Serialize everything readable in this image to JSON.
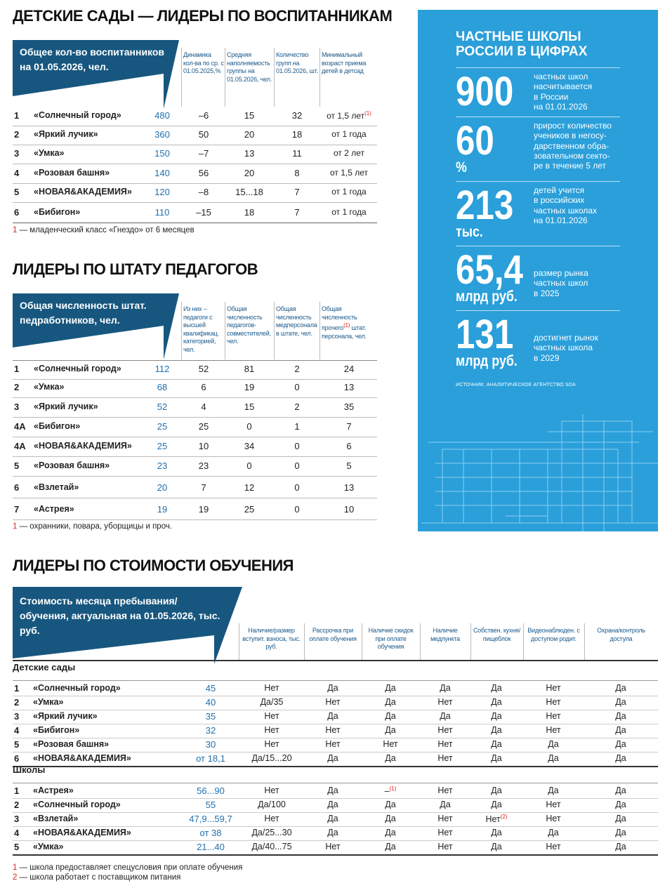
{
  "kindergartens": {
    "title": "ДЕТСКИЕ САДЫ — ЛИДЕРЫ ПО ВОСПИТАННИКАМ",
    "banner": "Общее кол-во воспитанников на 01.05.2026, чел.",
    "headers": [
      "Динамика кол-ва по ср. с 01.05.2025,%",
      "Средняя наполняемость группы на 01.05.2026, чел.",
      "Количество групп на 01.05.2026, шт.",
      "Минимальный возраст приема детей в детсад"
    ],
    "rows": [
      [
        "1",
        "«Солнечный город»",
        "480",
        "–6",
        "15",
        "32",
        [
          "от 1,5 лет",
          {
            "sup": "(1)"
          }
        ]
      ],
      [
        "2",
        "«Яркий лучик»",
        "360",
        "50",
        "20",
        "18",
        "от 1 года"
      ],
      [
        "3",
        "«Умка»",
        "150",
        "–7",
        "13",
        "11",
        "от 2 лет"
      ],
      [
        "4",
        "«Розовая башня»",
        "140",
        "56",
        "20",
        "8",
        "от 1,5 лет"
      ],
      [
        "5",
        "«НОВАЯ&АКАДЕМИЯ»",
        "120",
        "–8",
        "15...18",
        "7",
        "от 1 года"
      ],
      [
        "6",
        "«Бибигон»",
        "110",
        "–15",
        "18",
        "7",
        "от 1 года"
      ]
    ],
    "footnotes": [
      {
        "mark": "1",
        "text": "— младенческий класс «Гнездо» от 6 месяцев"
      }
    ]
  },
  "staff": {
    "title": "ЛИДЕРЫ ПО ШТАТУ ПЕДАГОГОВ",
    "banner": "Общая численность штат. педработников, чел.",
    "headers": [
      "Из них – педагоги с высшей квалификац. категорией, чел.",
      "Общая численность педагогов-совместителей, чел.",
      "Общая численность медперсонала в штате, чел.",
      [
        "Общая численность прочего",
        {
          "sup": "(1)"
        },
        " штат. персонала, чел."
      ]
    ],
    "rows": [
      [
        "1",
        "«Солнечный город»",
        "112",
        "52",
        "81",
        "2",
        "24"
      ],
      [
        "2",
        "«Умка»",
        "68",
        "6",
        "19",
        "0",
        "13"
      ],
      [
        "3",
        "«Яркий лучик»",
        "52",
        "4",
        "15",
        "2",
        "35"
      ],
      [
        "4А",
        "«Бибигон»",
        "25",
        "25",
        "0",
        "1",
        "7"
      ],
      [
        "4А",
        "«НОВАЯ&АКАДЕМИЯ»",
        "25",
        "10",
        "34",
        "0",
        "6"
      ],
      [
        "5",
        "«Розовая башня»",
        "23",
        "23",
        "0",
        "0",
        "5"
      ],
      [
        "6",
        "«Взлетай»",
        "20",
        "7",
        "12",
        "0",
        "13"
      ],
      [
        "7",
        "«Астрея»",
        "19",
        "19",
        "25",
        "0",
        "10"
      ]
    ],
    "footnotes": [
      {
        "mark": "1",
        "text": "— охранники, повара, уборщицы и проч."
      }
    ]
  },
  "costs": {
    "title": "ЛИДЕРЫ ПО СТОИМОСТИ ОБУЧЕНИЯ",
    "banner": "Стоимость месяца пребывания/ обучения, актуальная на 01.05.2026, тыс. руб.",
    "headers": [
      "Наличие/размер вступит. взноса, тыс. руб.",
      "Рассрочка при оплате обучения",
      "Наличие скидок при оплате обучения",
      "Наличие медпункта",
      "Собствен. кухня/ пищеблок",
      "Видеонаблюден. с доступом родит.",
      "Охрана/контроль доступа"
    ],
    "groups": [
      {
        "name": "Детские сады",
        "rows": [
          [
            "1",
            "«Солнечный город»",
            "45",
            "Нет",
            "Да",
            "Да",
            "Да",
            "Да",
            "Нет",
            "Да"
          ],
          [
            "2",
            "«Умка»",
            "40",
            "Да/35",
            "Нет",
            "Да",
            "Нет",
            "Да",
            "Нет",
            "Да"
          ],
          [
            "3",
            "«Яркий лучик»",
            "35",
            "Нет",
            "Да",
            "Да",
            "Да",
            "Да",
            "Нет",
            "Да"
          ],
          [
            "4",
            "«Бибигон»",
            "32",
            "Нет",
            "Нет",
            "Да",
            "Нет",
            "Да",
            "Нет",
            "Да"
          ],
          [
            "5",
            "«Розовая башня»",
            "30",
            "Нет",
            "Нет",
            "Нет",
            "Нет",
            "Да",
            "Да",
            "Да"
          ],
          [
            "6",
            "«НОВАЯ&АКАДЕМИЯ»",
            "от 18,1",
            "Да/15...20",
            "Да",
            "Да",
            "Нет",
            "Да",
            "Да",
            "Да"
          ]
        ]
      },
      {
        "name": "Школы",
        "rows": [
          [
            "1",
            "«Астрея»",
            "56...90",
            "Нет",
            "Да",
            [
              "–",
              {
                "sup": "(1)"
              }
            ],
            "Нет",
            "Да",
            "Да",
            "Да"
          ],
          [
            "2",
            "«Солнечный город»",
            "55",
            "Да/100",
            "Да",
            "Да",
            "Да",
            "Да",
            "Нет",
            "Да"
          ],
          [
            "3",
            "«Взлетай»",
            "47,9...59,7",
            "Нет",
            "Да",
            "Да",
            "Нет",
            [
              "Нет",
              {
                "sup": "(2)"
              }
            ],
            "Нет",
            "Да"
          ],
          [
            "4",
            "«НОВАЯ&АКАДЕМИЯ»",
            "от 38",
            "Да/25...30",
            "Да",
            "Да",
            "Нет",
            "Да",
            "Да",
            "Да"
          ],
          [
            "5",
            "«Умка»",
            "21...40",
            "Да/40...75",
            "Нет",
            "Да",
            "Нет",
            "Да",
            "Нет",
            "Да"
          ]
        ]
      }
    ],
    "footnotes": [
      {
        "mark": "1",
        "text": "— школа предоставляет спецусловия при оплате обучения"
      },
      {
        "mark": "2",
        "text": "— школа работает с поставщиком питания"
      }
    ]
  },
  "sidebar": {
    "title": "ЧАСТНЫЕ ШКОЛЫ РОССИИ В ЦИФРАХ",
    "stats": [
      {
        "value": "900",
        "lines": [
          "частных школ",
          "насчитывается",
          "в России",
          "на 01.01.2026"
        ]
      },
      {
        "value": "60",
        "unit": "%",
        "lines": [
          "прирост количество",
          "учеников в негосу-",
          "дарственном обра-",
          "зовательном секто-",
          "ре в течение 5 лет"
        ]
      },
      {
        "value": "213",
        "unit": "тыс.",
        "lines": [
          "детей учится",
          "в российских",
          "частных школах",
          "на 01.01.2026"
        ]
      },
      {
        "value": "65,4",
        "unit": "млрд руб.",
        "lines": [
          "размер рынка",
          "частных школ",
          "в 2025"
        ]
      },
      {
        "value": "131",
        "unit": "млрд руб.",
        "lines": [
          "достигнет рынок",
          "частных школа",
          "в 2029"
        ]
      }
    ],
    "source": "ИСТОЧНИК: АНАЛИТИЧЕСКОЕ АГЕНТСТВО SDA"
  }
}
